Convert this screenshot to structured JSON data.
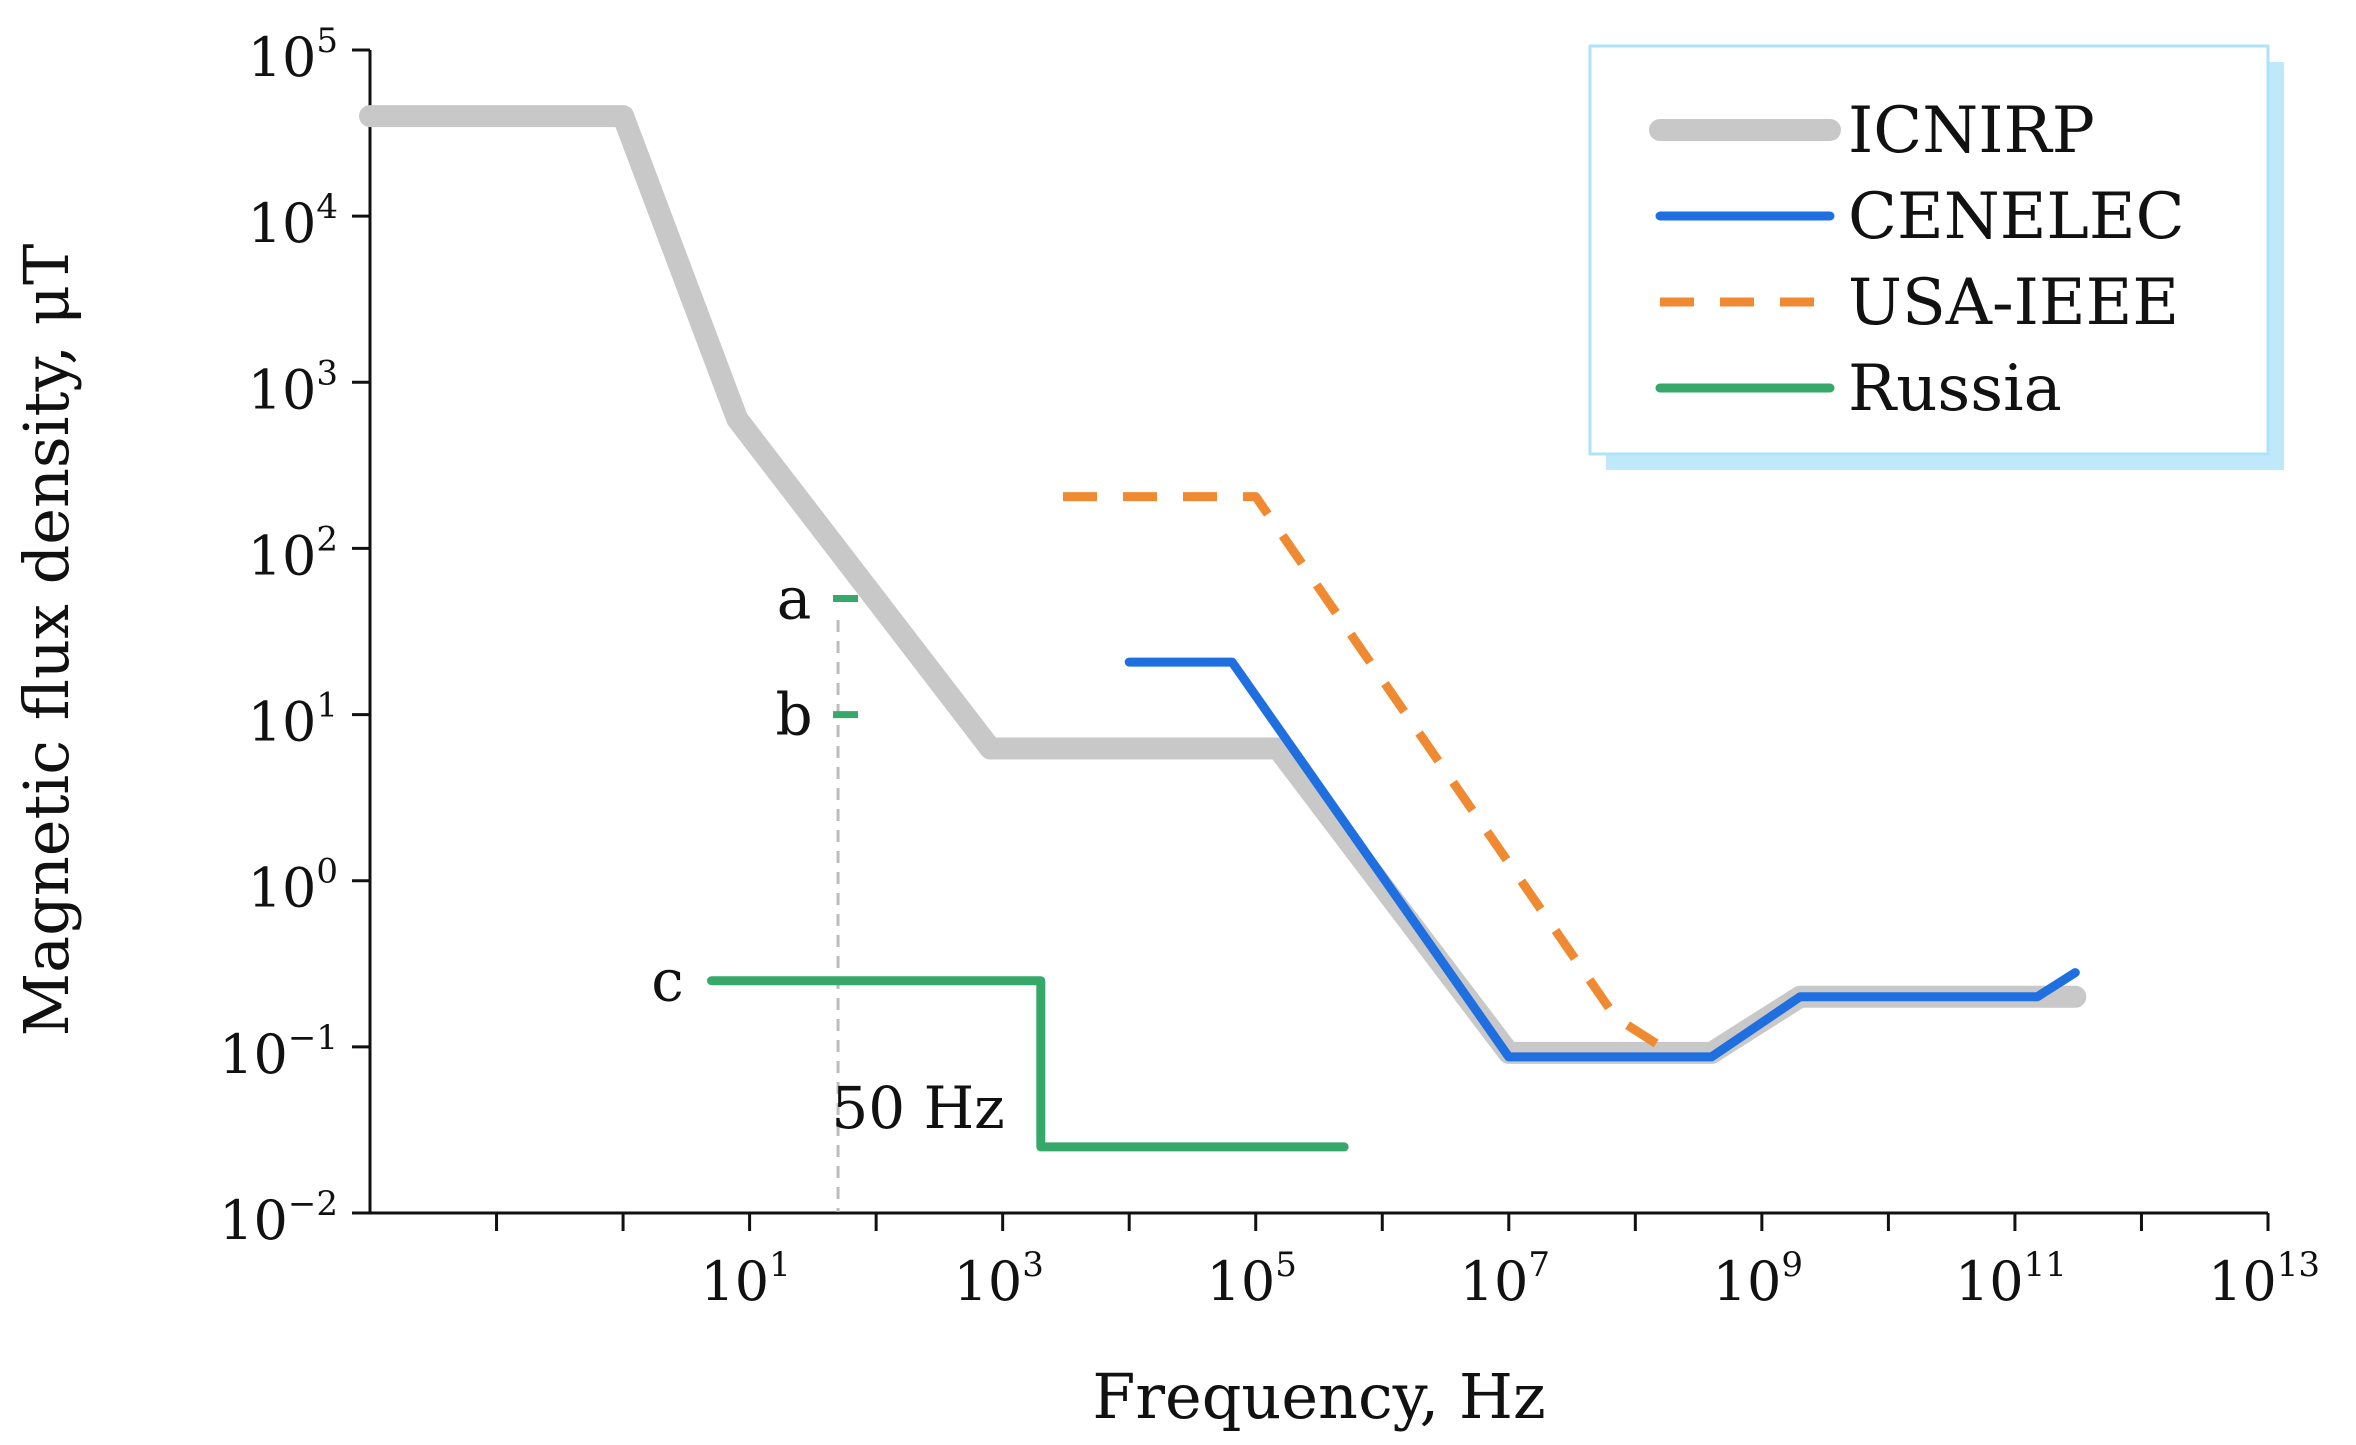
{
  "chart_data": {
    "type": "line",
    "x_scale": "log",
    "y_scale": "log",
    "xlabel": "Frequency, Hz",
    "ylabel": "Magnetic flux density, μT",
    "xlim": [
      0.01,
      10000000000000
    ],
    "ylim": [
      0.01,
      100000
    ],
    "x_ticks": [
      {
        "base": "10",
        "exp": "1",
        "value": 10
      },
      {
        "base": "10",
        "exp": "3",
        "value": 1000
      },
      {
        "base": "10",
        "exp": "5",
        "value": 100000
      },
      {
        "base": "10",
        "exp": "7",
        "value": 10000000
      },
      {
        "base": "10",
        "exp": "9",
        "value": 1000000000
      },
      {
        "base": "10",
        "exp": "11",
        "value": 100000000000
      },
      {
        "base": "10",
        "exp": "13",
        "value": 10000000000000
      }
    ],
    "y_ticks": [
      {
        "base": "10",
        "exp": "5",
        "value": 100000
      },
      {
        "base": "10",
        "exp": "4",
        "value": 10000
      },
      {
        "base": "10",
        "exp": "3",
        "value": 1000
      },
      {
        "base": "10",
        "exp": "2",
        "value": 100
      },
      {
        "base": "10",
        "exp": "1",
        "value": 10
      },
      {
        "base": "10",
        "exp": "0",
        "value": 1
      },
      {
        "base": "10",
        "exp": "−1",
        "value": 0.1
      },
      {
        "base": "10",
        "exp": "−2",
        "value": 0.01
      }
    ],
    "series": [
      {
        "name": "ICNIRP",
        "color": "#c8c8c8",
        "style": "solid",
        "weight": "thick",
        "points": [
          [
            0.01,
            40000
          ],
          [
            1,
            40000
          ],
          [
            8,
            600
          ],
          [
            800,
            6.25
          ],
          [
            150000,
            6.25
          ],
          [
            10000000,
            0.092
          ],
          [
            400000000,
            0.092
          ],
          [
            2000000000,
            0.2
          ],
          [
            300000000000,
            0.2
          ]
        ]
      },
      {
        "name": "CENELEC",
        "color": "#1f6fe0",
        "style": "solid",
        "weight": "medium",
        "points": [
          [
            10000,
            20.7
          ],
          [
            65000,
            20.7
          ],
          [
            10000000,
            0.087
          ],
          [
            400000000,
            0.087
          ],
          [
            2000000000,
            0.2
          ],
          [
            150000000000,
            0.2
          ],
          [
            300000000000,
            0.28
          ]
        ]
      },
      {
        "name": "USA-IEEE",
        "color": "#f08a32",
        "style": "dashed",
        "weight": "medium",
        "points": [
          [
            3000,
            205
          ],
          [
            100000,
            205
          ],
          [
            70000000,
            0.15
          ],
          [
            200000000,
            0.09
          ]
        ]
      },
      {
        "name": "Russia",
        "color": "#35a86a",
        "style": "solid",
        "weight": "medium",
        "points": [
          [
            5,
            0.25
          ],
          [
            2000,
            0.25
          ],
          [
            2000,
            0.025
          ],
          [
            500000,
            0.025
          ]
        ]
      }
    ],
    "russia_markers": [
      {
        "label": "a",
        "x": 50,
        "y": 50
      },
      {
        "label": "b",
        "x": 50,
        "y": 10
      },
      {
        "label": "c",
        "x": 5,
        "y": 0.25
      }
    ],
    "reference_line": {
      "x": 50,
      "label": "50 Hz"
    },
    "legend_position": "top-right"
  }
}
